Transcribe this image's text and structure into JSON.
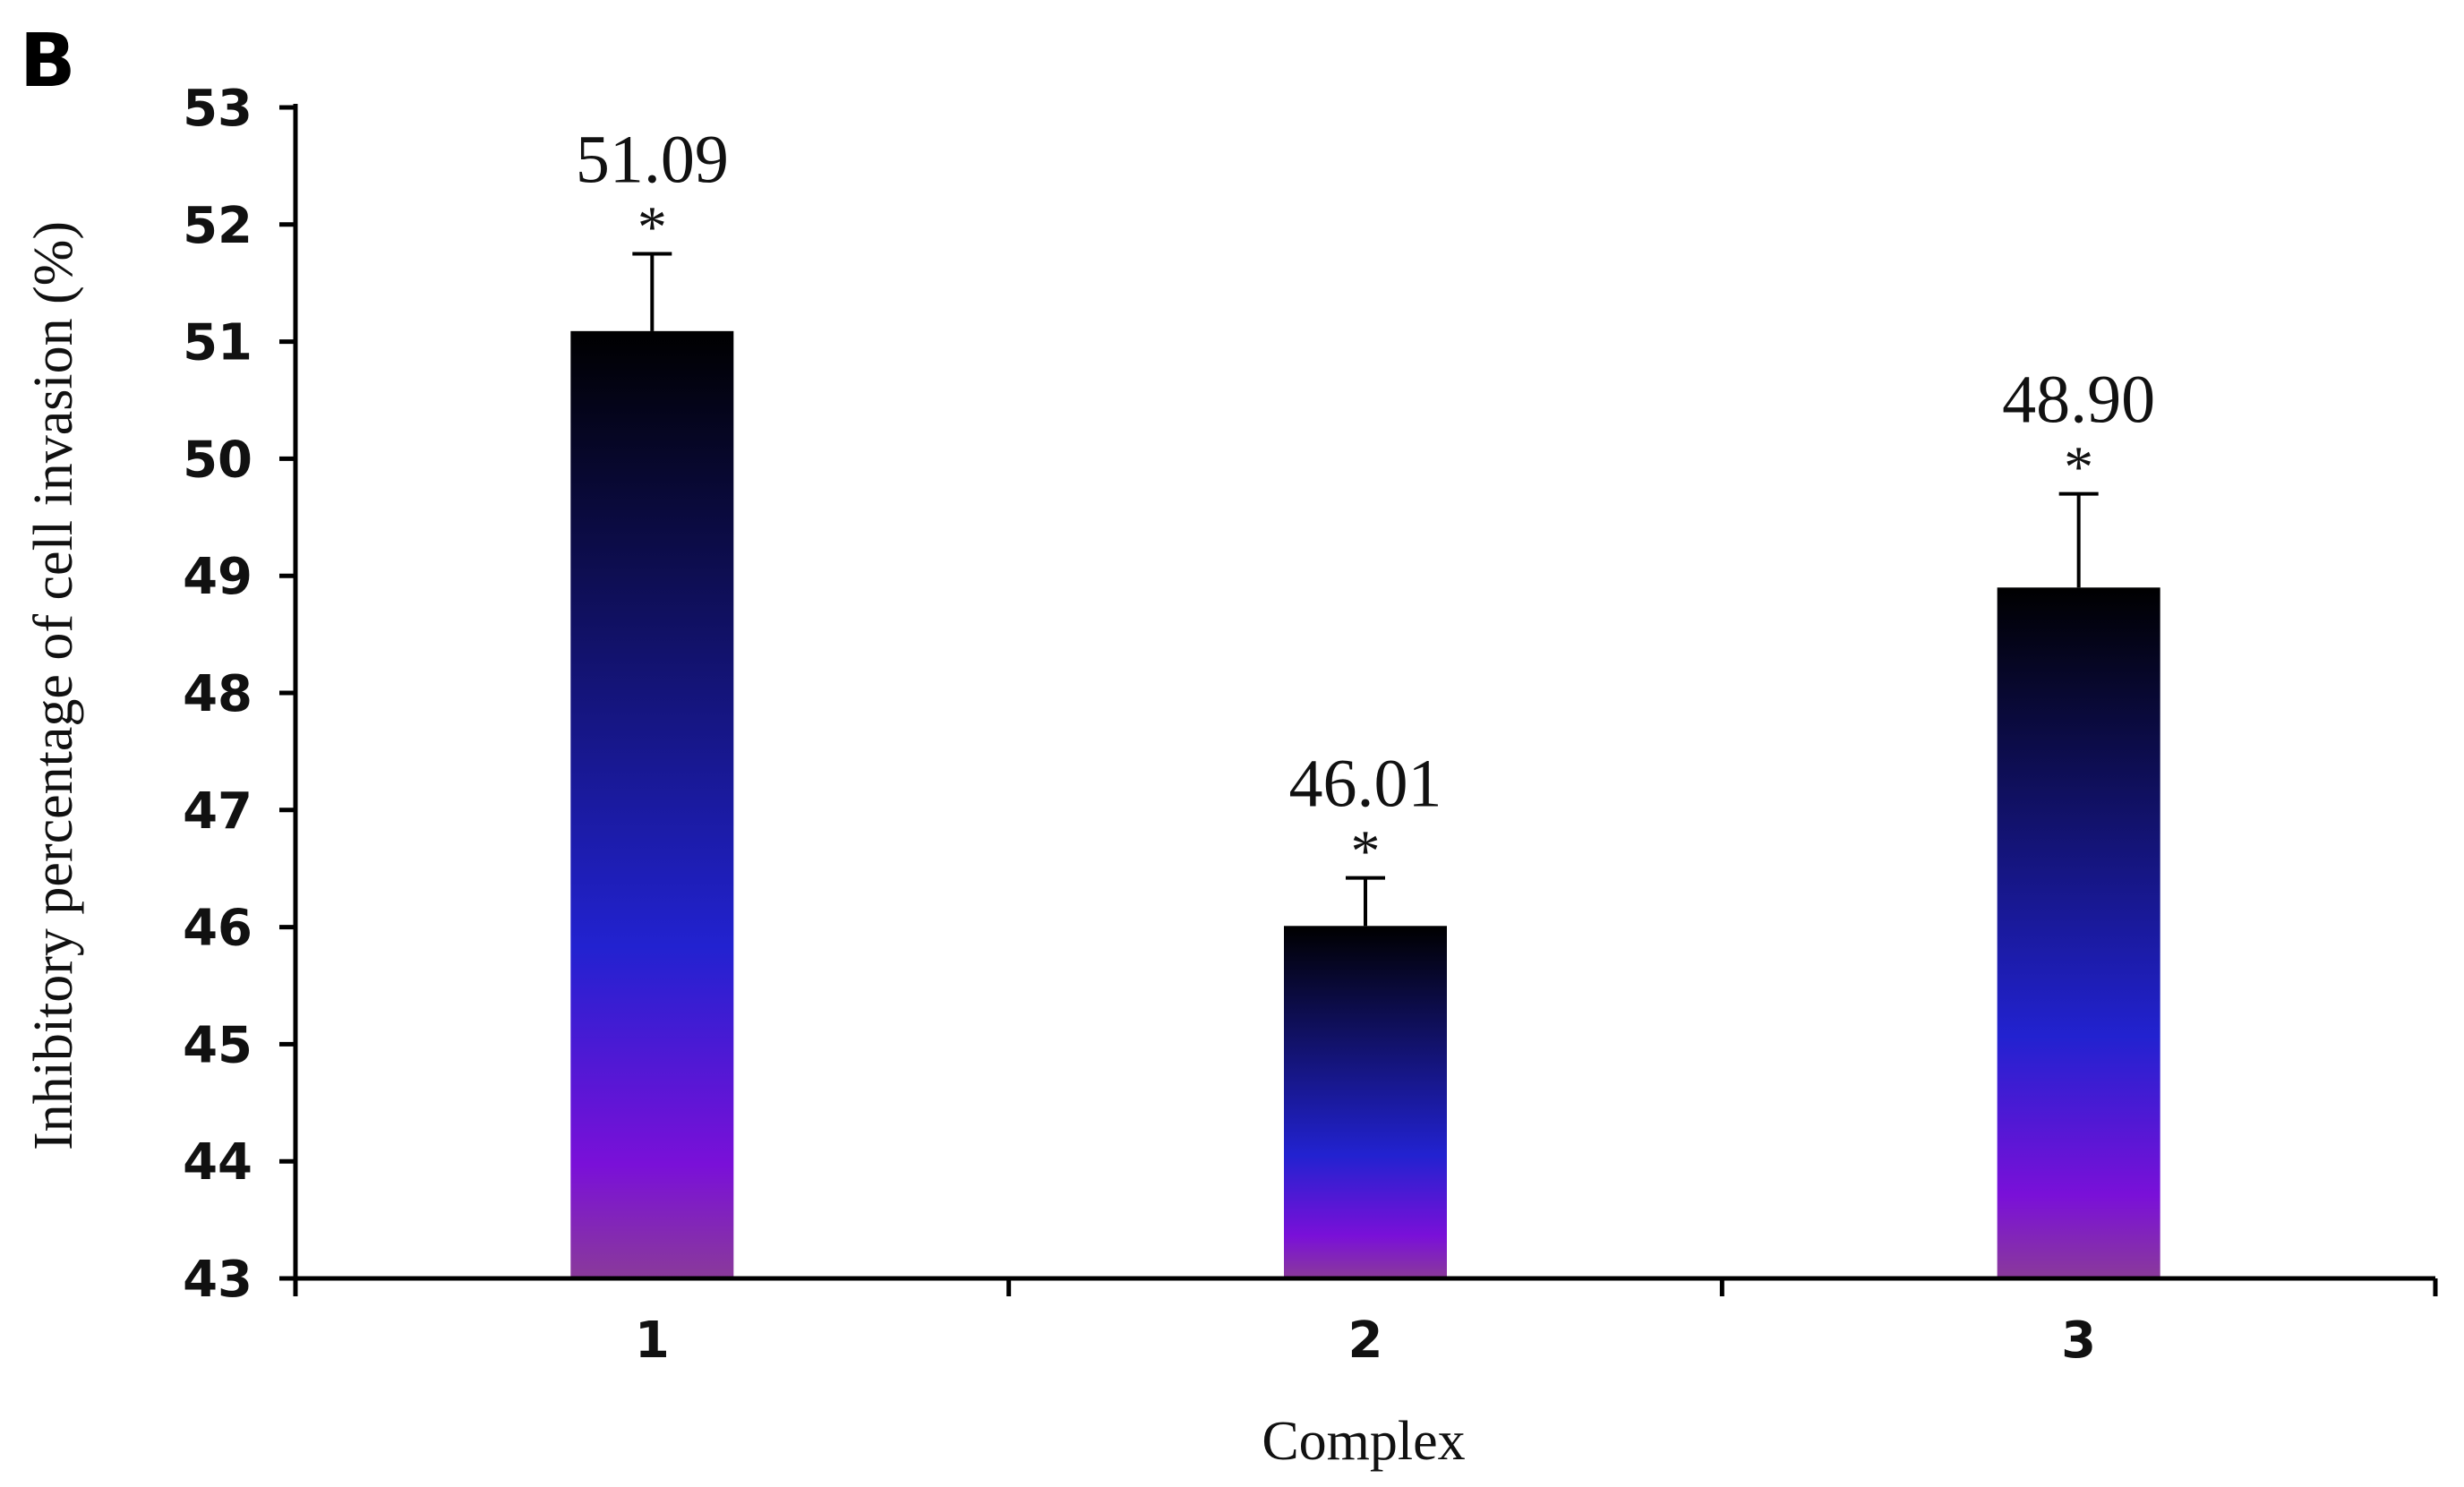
{
  "panel_label": "B",
  "chart_data": {
    "type": "bar",
    "title": "",
    "xlabel": "Complex",
    "ylabel": "Inhibitory percentage of cell invasion (%)",
    "ylim": [
      43,
      53
    ],
    "yticks": [
      43,
      44,
      45,
      46,
      47,
      48,
      49,
      50,
      51,
      52,
      53
    ],
    "ytick_labels": [
      "43",
      "44",
      "45",
      "46",
      "47",
      "48",
      "49",
      "50",
      "51",
      "52",
      "53"
    ],
    "categories": [
      "1",
      "2",
      "3"
    ],
    "values": [
      51.09,
      46.01,
      48.9
    ],
    "error_upper": [
      51.75,
      46.42,
      49.7
    ],
    "data_labels": [
      "51.09",
      "46.01",
      "48.90"
    ],
    "significance_markers": [
      "*",
      "*",
      "*"
    ],
    "grid": false,
    "legend": "none",
    "bar_gradient": [
      "#000000",
      "#101060",
      "#2222d0",
      "#7a10d8",
      "#8a3a9a"
    ]
  }
}
